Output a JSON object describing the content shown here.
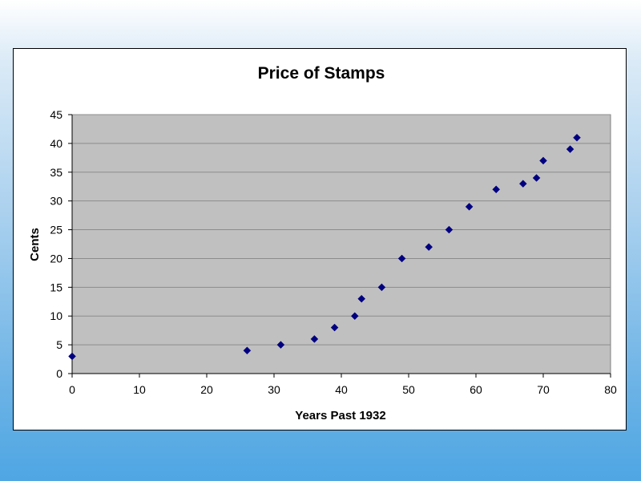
{
  "chart_data": {
    "type": "scatter",
    "title": "Price of Stamps",
    "xlabel": "Years Past 1932",
    "ylabel": "Cents",
    "xlim": [
      0,
      80
    ],
    "ylim": [
      0,
      45
    ],
    "xticks": [
      "0",
      "10",
      "20",
      "30",
      "40",
      "50",
      "60",
      "70",
      "80"
    ],
    "yticks": [
      "0",
      "5",
      "10",
      "15",
      "20",
      "25",
      "30",
      "35",
      "40",
      "45"
    ],
    "grid": true,
    "legend": "none",
    "plot_background": "#c0c0c0",
    "marker_color": "#000080",
    "marker": "diamond",
    "series": [
      {
        "points": [
          [
            0,
            3
          ],
          [
            26,
            4
          ],
          [
            31,
            5
          ],
          [
            36,
            6
          ],
          [
            39,
            8
          ],
          [
            42,
            10
          ],
          [
            43,
            13
          ],
          [
            46,
            15
          ],
          [
            49,
            20
          ],
          [
            53,
            22
          ],
          [
            56,
            25
          ],
          [
            59,
            29
          ],
          [
            63,
            32
          ],
          [
            67,
            33
          ],
          [
            69,
            34
          ],
          [
            70,
            37
          ],
          [
            74,
            39
          ],
          [
            75,
            41
          ]
        ]
      }
    ]
  }
}
